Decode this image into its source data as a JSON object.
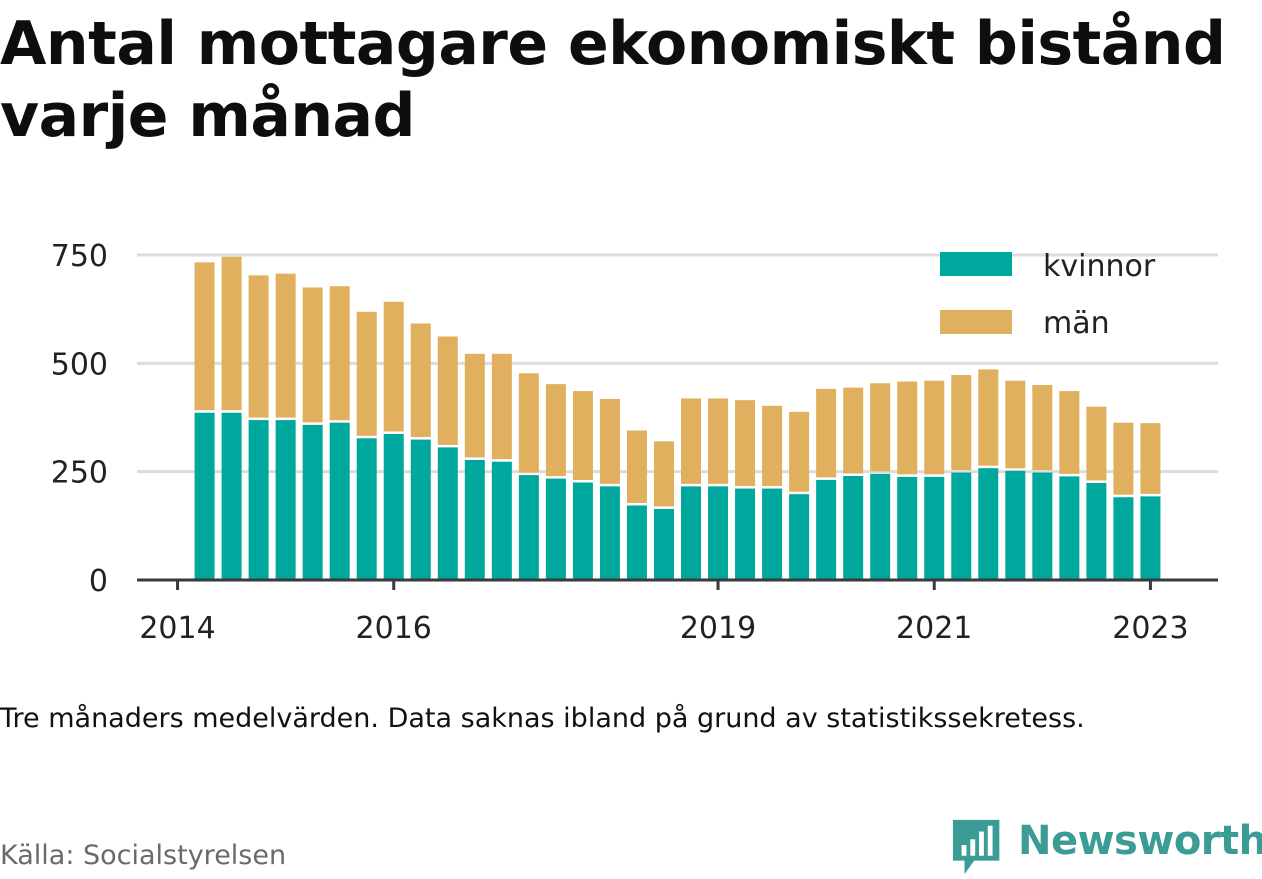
{
  "chart_data": {
    "type": "bar",
    "stacked": true,
    "title": "Antal mottagare ekonomiskt bistånd varje månad",
    "note": "Tre månaders medelvärden. Data saknas ibland på grund av statistikssekretess.",
    "source": "Källa: Socialstyrelsen",
    "brand": "Newsworthy",
    "ylim": [
      0,
      750
    ],
    "yticks": [
      0,
      250,
      500,
      750
    ],
    "xticks": [
      {
        "label": "2014",
        "x": 2014.0
      },
      {
        "label": "2016",
        "x": 2016.0
      },
      {
        "label": "2019",
        "x": 2019.0
      },
      {
        "label": "2021",
        "x": 2021.0
      },
      {
        "label": "2023",
        "x": 2023.0
      }
    ],
    "grid": true,
    "legend_position": "top-right",
    "x": [
      2014.25,
      2014.5,
      2014.75,
      2015.0,
      2015.25,
      2015.5,
      2015.75,
      2016.0,
      2016.25,
      2016.5,
      2016.75,
      2017.0,
      2017.25,
      2017.5,
      2017.75,
      2018.0,
      2018.25,
      2018.5,
      2018.75,
      2019.0,
      2019.25,
      2019.5,
      2019.75,
      2020.0,
      2020.25,
      2020.5,
      2020.75,
      2021.0,
      2021.25,
      2021.5,
      2021.75,
      2022.0,
      2022.25,
      2022.5,
      2022.75,
      2023.0
    ],
    "series": [
      {
        "name": "kvinnor",
        "color": "#00a79d",
        "values": [
          386,
          386,
          369,
          369,
          358,
          363,
          327,
          337,
          324,
          306,
          277,
          273,
          242,
          234,
          225,
          216,
          172,
          164,
          216,
          216,
          211,
          211,
          198,
          231,
          240,
          245,
          238,
          238,
          248,
          258,
          252,
          248,
          239,
          224,
          191,
          193
        ]
      },
      {
        "name": "män",
        "color": "#e0b05e",
        "values": [
          347,
          360,
          334,
          338,
          317,
          315,
          292,
          305,
          268,
          256,
          245,
          249,
          235,
          218,
          211,
          202,
          173,
          156,
          203,
          203,
          204,
          191,
          190,
          210,
          204,
          209,
          220,
          222,
          225,
          228,
          208,
          202,
          197,
          176,
          172,
          169
        ]
      }
    ]
  }
}
